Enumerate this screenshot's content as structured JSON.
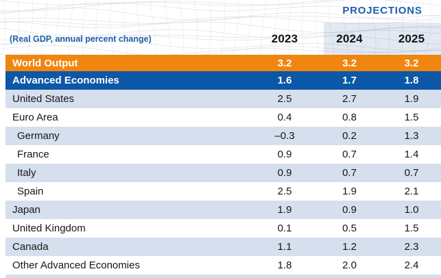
{
  "header": {
    "projections_label": "PROJECTIONS",
    "unit_label": "(Real GDP, annual percent change)",
    "years": [
      "2023",
      "2024",
      "2025"
    ]
  },
  "colors": {
    "world_row_orange": "#F0850F",
    "advanced_row_blue": "#0C57A6",
    "stripe_light_blue": "#D5DFEE",
    "projection_overlay_blue": "#E3E9F2",
    "heading_blue": "#1F5FA8",
    "body_text": "#161616"
  },
  "rows": [
    {
      "label": "World Output",
      "v1": "3.2",
      "v2": "3.2",
      "v3": "3.2"
    },
    {
      "label": "Advanced Economies",
      "v1": "1.6",
      "v2": "1.7",
      "v3": "1.8"
    },
    {
      "label": "United States",
      "v1": "2.5",
      "v2": "2.7",
      "v3": "1.9"
    },
    {
      "label": "Euro Area",
      "v1": "0.4",
      "v2": "0.8",
      "v3": "1.5"
    },
    {
      "label": "Germany",
      "v1": "–0.3",
      "v2": "0.2",
      "v3": "1.3"
    },
    {
      "label": "France",
      "v1": "0.9",
      "v2": "0.7",
      "v3": "1.4"
    },
    {
      "label": "Italy",
      "v1": "0.9",
      "v2": "0.7",
      "v3": "0.7"
    },
    {
      "label": "Spain",
      "v1": "2.5",
      "v2": "1.9",
      "v3": "2.1"
    },
    {
      "label": "Japan",
      "v1": "1.9",
      "v2": "0.9",
      "v3": "1.0"
    },
    {
      "label": "United Kingdom",
      "v1": "0.1",
      "v2": "0.5",
      "v3": "1.5"
    },
    {
      "label": "Canada",
      "v1": "1.1",
      "v2": "1.2",
      "v3": "2.3"
    },
    {
      "label": "Other Advanced Economies",
      "v1": "1.8",
      "v2": "2.0",
      "v3": "2.4"
    }
  ],
  "chart_data": {
    "type": "table",
    "title": "PROJECTIONS",
    "unit": "(Real GDP, annual percent change)",
    "columns": [
      "2023",
      "2024",
      "2025"
    ],
    "projection_columns": [
      "2024",
      "2025"
    ],
    "rows": [
      {
        "label": "World Output",
        "values": [
          3.2,
          3.2,
          3.2
        ],
        "emphasis": "world"
      },
      {
        "label": "Advanced Economies",
        "values": [
          1.6,
          1.7,
          1.8
        ],
        "emphasis": "group"
      },
      {
        "label": "United States",
        "values": [
          2.5,
          2.7,
          1.9
        ]
      },
      {
        "label": "Euro Area",
        "values": [
          0.4,
          0.8,
          1.5
        ]
      },
      {
        "label": "Germany",
        "values": [
          -0.3,
          0.2,
          1.3
        ],
        "indent": true
      },
      {
        "label": "France",
        "values": [
          0.9,
          0.7,
          1.4
        ],
        "indent": true
      },
      {
        "label": "Italy",
        "values": [
          0.9,
          0.7,
          0.7
        ],
        "indent": true
      },
      {
        "label": "Spain",
        "values": [
          2.5,
          1.9,
          2.1
        ],
        "indent": true
      },
      {
        "label": "Japan",
        "values": [
          1.9,
          0.9,
          1.0
        ]
      },
      {
        "label": "United Kingdom",
        "values": [
          0.1,
          0.5,
          1.5
        ]
      },
      {
        "label": "Canada",
        "values": [
          1.1,
          1.2,
          2.3
        ]
      },
      {
        "label": "Other Advanced Economies",
        "values": [
          1.8,
          2.0,
          2.4
        ]
      }
    ]
  }
}
